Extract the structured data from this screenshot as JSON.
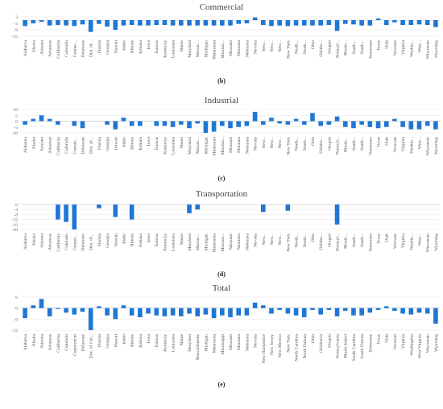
{
  "states_short": [
    "Alabama",
    "Alaska",
    "Arizona",
    "Arkansas",
    "California",
    "Colorado",
    "Connec...",
    "Delaware",
    "Dist. of...",
    "Florida",
    "Georgia",
    "Hawaii",
    "Idaho",
    "Illinois",
    "Indiana",
    "Iowa",
    "Kansas",
    "Kentucky",
    "Louisiana",
    "Maine",
    "Maryland",
    "Massac...",
    "Michigan",
    "Minnesota",
    "Mississi...",
    "Missouri",
    "Montana",
    "Nebraska",
    "Nevada",
    "New...",
    "New...",
    "New...",
    "New York",
    "North...",
    "North...",
    "Ohio",
    "Oklaho...",
    "Oregon",
    "Pennsyl...",
    "Rhode...",
    "South...",
    "South...",
    "Tennessee",
    "Texas",
    "Utah",
    "Vermont",
    "Virginia",
    "Washin...",
    "West...",
    "Wisconsin",
    "Wyoming"
  ],
  "states_full": [
    "Alabama",
    "Alaska",
    "Arizona",
    "Arkansas",
    "California",
    "Colorado",
    "Connecticut",
    "Delaware",
    "Dist. of Col...",
    "Florida",
    "Georgia",
    "Hawaii",
    "Idaho",
    "Illinois",
    "Indiana",
    "Iowa",
    "Kansas",
    "Kentucky",
    "Louisiana",
    "Maine",
    "Maryland",
    "Massachusetts",
    "Michigan",
    "Minnesota",
    "Mississippi",
    "Missouri",
    "Montana",
    "Nebraska",
    "Nevada",
    "New Hampshire",
    "New Jersey",
    "New Mexico",
    "New York",
    "North Carolina",
    "North Dakota",
    "Ohio",
    "Oklahoma",
    "Oregon",
    "Pennsylvania",
    "Rhode Island",
    "South Carolina",
    "South Dakota",
    "Tennessee",
    "Texas",
    "Utah",
    "Vermont",
    "Virginia",
    "Washington",
    "West Virginia",
    "Wisconsin",
    "Wyoming"
  ],
  "chart_data": [
    {
      "type": "bar",
      "title": "Commercial",
      "panel_label": "(b)",
      "categories_ref": "states_short",
      "yticks": [
        "3",
        "-3",
        "-9",
        "-15"
      ],
      "ylim": [
        -15,
        3
      ],
      "values": [
        -5.5,
        -3,
        -1.5,
        -5,
        -4.5,
        -5,
        -5.5,
        -4,
        -11,
        -3.5,
        -6,
        -9,
        -5,
        -4.5,
        -5,
        -5,
        -4.5,
        -4.5,
        -5,
        -5,
        -5,
        -5,
        -5,
        -5,
        -5,
        -5,
        -3.5,
        -3,
        2.5,
        -4.5,
        -5.5,
        -5,
        -5.5,
        -5,
        -5,
        -5,
        -5,
        -4.5,
        -10,
        -3.5,
        -4,
        -5,
        -5,
        1.5,
        -4.5,
        -2,
        -4.5,
        -4.5,
        -4,
        -4.5,
        -6.5
      ]
    },
    {
      "type": "bar",
      "title": "Industrial",
      "panel_label": "(c)",
      "categories_ref": "states_short",
      "yticks": [
        "10",
        "5",
        "0",
        "-5",
        "-10"
      ],
      "ylim": [
        -10,
        10
      ],
      "values": [
        -3,
        2,
        5,
        2,
        -3,
        0,
        -4,
        -6,
        0,
        0,
        -3,
        -7,
        3,
        -4,
        -4,
        0,
        -4,
        -4,
        -5,
        -3,
        -6,
        -2,
        -10,
        -9,
        -4,
        -6,
        -5,
        -4,
        8,
        -3,
        3,
        -2,
        -3,
        2,
        -3,
        7,
        -4,
        -3,
        4,
        -5,
        -6,
        -3,
        -5,
        -6,
        -5,
        2,
        -5,
        -7,
        -7,
        -4,
        -7
      ]
    },
    {
      "type": "bar",
      "title": "Transportation",
      "panel_label": "(d)",
      "categories_ref": "states_short",
      "yticks": [
        "0",
        "-4",
        "-8",
        "-12",
        "-16",
        "-20"
      ],
      "ylim": [
        -20,
        0
      ],
      "values": [
        0,
        0,
        0,
        0,
        -12,
        -14,
        -20,
        0,
        0,
        -3,
        0,
        -10,
        0,
        -12,
        0,
        0,
        0,
        0,
        0,
        0,
        -7,
        -4,
        0,
        0,
        0,
        0,
        0,
        0,
        0,
        -6,
        0,
        0,
        -5,
        0,
        0,
        0,
        0,
        0,
        -16,
        0,
        0,
        0,
        0,
        0,
        0,
        0,
        0,
        0,
        0,
        0,
        0
      ]
    },
    {
      "type": "bar",
      "title": "Total",
      "panel_label": "(e)",
      "categories_ref": "states_full",
      "yticks": [
        "6",
        "0",
        "-6",
        "-12"
      ],
      "ylim": [
        -12,
        6
      ],
      "values": [
        -5.5,
        1.5,
        5,
        -4.5,
        -0.5,
        -2.5,
        -3.5,
        -2,
        -12,
        1,
        -4,
        -6,
        1.5,
        -4,
        -5,
        -3,
        -4,
        -4.5,
        -4,
        -4.5,
        -3,
        -4.5,
        -3.5,
        -5.5,
        -4,
        -5,
        -4,
        -4,
        3,
        1.5,
        -3,
        -1,
        -3,
        -4,
        -5,
        -1,
        -3.5,
        -1,
        -4.5,
        -1.5,
        -4,
        -4,
        -2.5,
        -1,
        1,
        -1.5,
        -3,
        -3.5,
        -2.5,
        -3,
        -8.5
      ]
    }
  ],
  "colors": {
    "bar": "#1f77d4"
  }
}
